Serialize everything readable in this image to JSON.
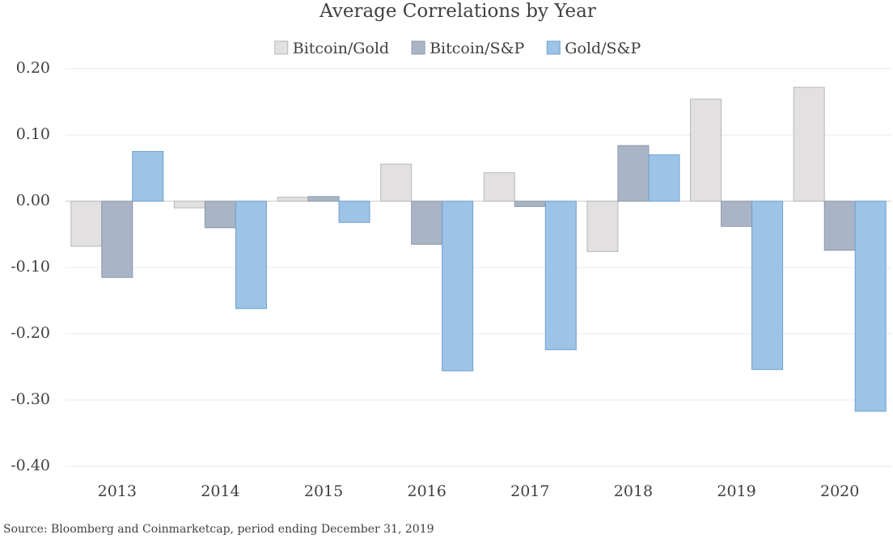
{
  "chart_data": {
    "type": "bar",
    "title": "Average Correlations by Year",
    "source": "Source: Bloomberg and Coinmarketcap, period ending December 31, 2019",
    "categories": [
      "2013",
      "2014",
      "2015",
      "2016",
      "2017",
      "2018",
      "2019",
      "2020"
    ],
    "series": [
      {
        "name": "Bitcoin/Gold",
        "color": "#e2e0e1",
        "values": [
          -0.068,
          -0.01,
          0.006,
          0.056,
          0.043,
          -0.076,
          0.154,
          0.172
        ]
      },
      {
        "name": "Bitcoin/S&P",
        "color": "#a9b4c6",
        "values": [
          -0.115,
          -0.04,
          0.007,
          -0.065,
          -0.008,
          0.084,
          -0.038,
          -0.074
        ]
      },
      {
        "name": "Gold/S&P",
        "color": "#9dc3e6",
        "values": [
          0.075,
          -0.162,
          -0.032,
          -0.256,
          -0.224,
          0.07,
          -0.254,
          -0.317
        ]
      }
    ],
    "ylim": [
      -0.4,
      0.2
    ],
    "yticks": [
      {
        "value": 0.2,
        "label": "0.20"
      },
      {
        "value": 0.1,
        "label": "0.10"
      },
      {
        "value": 0,
        "label": "0.00"
      },
      {
        "value": -0.1,
        "label": "-0.10"
      },
      {
        "value": -0.2,
        "label": "-0.20"
      },
      {
        "value": -0.3,
        "label": "-0.30"
      },
      {
        "value": -0.4,
        "label": "-0.40"
      }
    ],
    "grid": true
  }
}
